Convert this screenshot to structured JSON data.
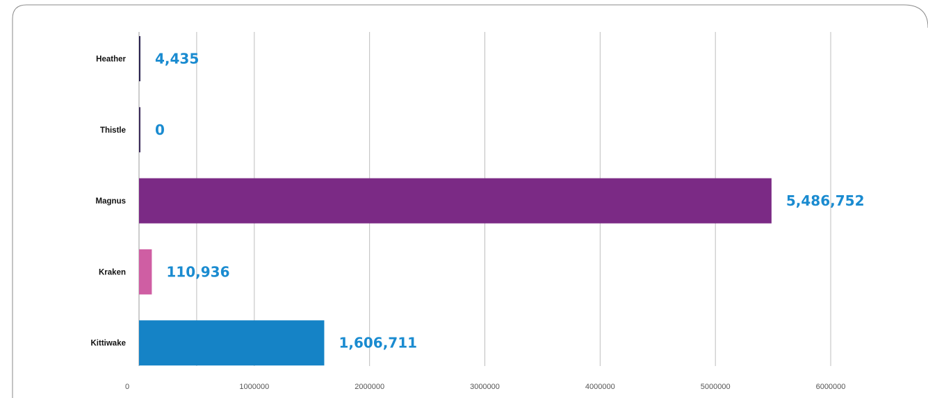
{
  "chart_data": {
    "type": "bar",
    "orientation": "horizontal",
    "categories": [
      "Heather",
      "Thistle",
      "Magnus",
      "Kraken",
      "Kittiwake"
    ],
    "values": [
      4435,
      0,
      5486752,
      110936,
      1606711
    ],
    "value_labels": [
      "4,435",
      "0",
      "5,486,752",
      "110,936",
      "1,606,711"
    ],
    "bar_colors": [
      "#2a2250",
      "#3a2a5a",
      "#7b2a85",
      "#cf5ea3",
      "#1583c6"
    ],
    "label_color": "#1a8bd0",
    "xlim": [
      0,
      6000000
    ],
    "x_ticks": [
      0,
      1000000,
      2000000,
      3000000,
      4000000,
      5000000,
      6000000
    ],
    "x_tick_labels": [
      "0",
      "1000000",
      "2000000",
      "3000000",
      "4000000",
      "5000000",
      "6000000"
    ],
    "grid": "vertical",
    "legend": "none"
  }
}
